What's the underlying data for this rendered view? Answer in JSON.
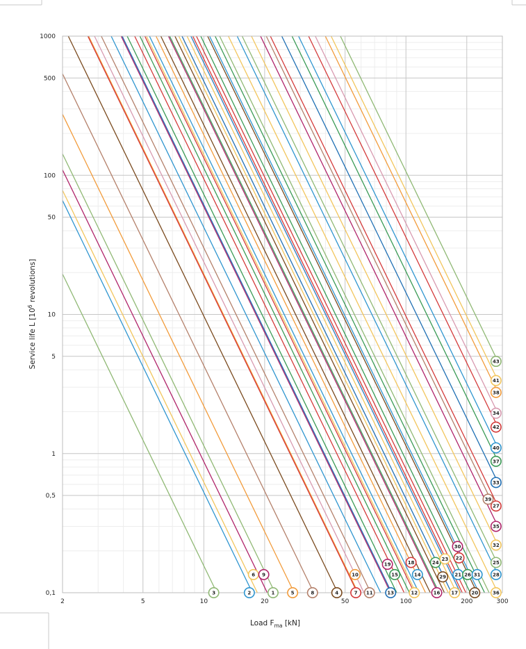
{
  "chart_data": {
    "type": "line",
    "xscale": "log",
    "yscale": "log",
    "xlim": [
      2,
      300
    ],
    "ylim": [
      0.1,
      1000
    ],
    "xlabel_main": "Load F",
    "xlabel_sub": "ma",
    "xlabel_unit": " [kN]",
    "ylabel_main": "Service life L [10",
    "ylabel_sup": "6",
    "ylabel_unit": " revolutions]",
    "x_ticks": [
      {
        "value": 2,
        "label": "2"
      },
      {
        "value": 5,
        "label": "5"
      },
      {
        "value": 10,
        "label": "10"
      },
      {
        "value": 20,
        "label": "20"
      },
      {
        "value": 50,
        "label": "50"
      },
      {
        "value": 100,
        "label": "100"
      },
      {
        "value": 200,
        "label": "200"
      },
      {
        "value": 300,
        "label": "300"
      }
    ],
    "y_ticks": [
      {
        "value": 0.1,
        "label": "0,1"
      },
      {
        "value": 0.5,
        "label": "0,5"
      },
      {
        "value": 1,
        "label": "1"
      },
      {
        "value": 5,
        "label": "5"
      },
      {
        "value": 10,
        "label": "10"
      },
      {
        "value": 50,
        "label": "50"
      },
      {
        "value": 100,
        "label": "100"
      },
      {
        "value": 500,
        "label": "500"
      },
      {
        "value": 1000,
        "label": "1000"
      }
    ],
    "grid": true,
    "series": [
      {
        "name": "3",
        "color": "#8fb874",
        "x0": 11.6,
        "y0": 0.1,
        "mx": 11.2,
        "my": 0.1
      },
      {
        "name": "2",
        "color": "#2e95cf",
        "x0": 17.4,
        "y0": 0.1,
        "mx": 16.8,
        "my": 0.1
      },
      {
        "name": "6",
        "color": "#f2c55c",
        "x0": 18.4,
        "y0": 0.1,
        "mx": 17.6,
        "my": 0.135
      },
      {
        "name": "9",
        "color": "#b0246a",
        "x0": 20.6,
        "y0": 0.1,
        "mx": 19.8,
        "my": 0.135
      },
      {
        "name": "1",
        "color": "#8fb874",
        "x0": 22.5,
        "y0": 0.1,
        "mx": 22.0,
        "my": 0.1
      },
      {
        "name": "5",
        "color": "#f29b3a",
        "x0": 28,
        "y0": 0.1,
        "mx": 27.5,
        "my": 0.1
      },
      {
        "name": "8",
        "color": "#b4806a",
        "x0": 35,
        "y0": 0.1,
        "mx": 34.5,
        "my": 0.1
      },
      {
        "name": "4",
        "color": "#7a4a1e",
        "x0": 46,
        "y0": 0.1,
        "mx": 45.5,
        "my": 0.1
      },
      {
        "name": "10",
        "color": "#f29b3a",
        "x0": 58,
        "y0": 0.1,
        "mx": 56,
        "my": 0.135
      },
      {
        "name": "7",
        "color": "#d43a3a",
        "x0": 57.5,
        "y0": 0.1,
        "mx": 56.5,
        "my": 0.1
      },
      {
        "name": "11",
        "color": "#b4806a",
        "x0": 67,
        "y0": 0.1,
        "mx": 66,
        "my": 0.1
      },
      {
        "name": "19",
        "color": "#b0246a",
        "x0": 84,
        "y0": 0.1,
        "mx": 81,
        "my": 0.16
      },
      {
        "name": "13",
        "color": "#1f6fb4",
        "x0": 85,
        "y0": 0.1,
        "mx": 84,
        "my": 0.1
      },
      {
        "name": "15",
        "color": "#3a9a55",
        "x0": 90,
        "y0": 0.1,
        "mx": 88,
        "my": 0.135
      },
      {
        "name": "18",
        "color": "#d43a3a",
        "x0": 110,
        "y0": 0.1,
        "mx": 106,
        "my": 0.165
      },
      {
        "name": "12",
        "color": "#f2c55c",
        "x0": 112,
        "y0": 0.1,
        "mx": 110,
        "my": 0.1
      },
      {
        "name": "14",
        "color": "#2e95cf",
        "x0": 116,
        "y0": 0.1,
        "mx": 114,
        "my": 0.135
      },
      {
        "name": "24",
        "color": "#3a9a55",
        "x0": 146,
        "y0": 0.1,
        "mx": 140,
        "my": 0.165
      },
      {
        "name": "16",
        "color": "#b0246a",
        "x0": 144,
        "y0": 0.1,
        "mx": 142,
        "my": 0.1
      },
      {
        "name": "23",
        "color": "#f2c55c",
        "x0": 162,
        "y0": 0.1,
        "mx": 156,
        "my": 0.175
      },
      {
        "name": "29",
        "color": "#7a4a1e",
        "x0": 155,
        "y0": 0.1,
        "mx": 152,
        "my": 0.13
      },
      {
        "name": "17",
        "color": "#f2c55c",
        "x0": 178,
        "y0": 0.1,
        "mx": 174,
        "my": 0.1
      },
      {
        "name": "30",
        "color": "#b0246a",
        "x0": 186,
        "y0": 0.1,
        "mx": 180,
        "my": 0.215
      },
      {
        "name": "22",
        "color": "#d43a3a",
        "x0": 190,
        "y0": 0.1,
        "mx": 183,
        "my": 0.178
      },
      {
        "name": "21",
        "color": "#2e95cf",
        "x0": 186,
        "y0": 0.1,
        "mx": 181,
        "my": 0.135
      },
      {
        "name": "26",
        "color": "#3a9a55",
        "x0": 208,
        "y0": 0.1,
        "mx": 202,
        "my": 0.135
      },
      {
        "name": "20",
        "color": "#7a4a1e",
        "x0": 225,
        "y0": 0.1,
        "mx": 219,
        "my": 0.1
      },
      {
        "name": "31",
        "color": "#2e95cf",
        "x0": 230,
        "y0": 0.1,
        "mx": 225,
        "my": 0.135
      },
      {
        "name": "36",
        "color": "#f2c55c",
        "x0": 285,
        "y0": 0.1,
        "mx": 279,
        "my": 0.1
      },
      {
        "name": "28",
        "color": "#2e95cf",
        "x0": 285,
        "y0": 0.135,
        "mx": 279,
        "my": 0.135
      },
      {
        "name": "25",
        "color": "#8fb874",
        "x0": 285,
        "y0": 0.16,
        "mx": 279,
        "my": 0.165
      },
      {
        "name": "32",
        "color": "#f2c55c",
        "x0": 285,
        "y0": 0.22,
        "mx": 279,
        "my": 0.22
      },
      {
        "name": "35",
        "color": "#b0246a",
        "x0": 285,
        "y0": 0.3,
        "mx": 279,
        "my": 0.3
      },
      {
        "name": "27",
        "color": "#d43a3a",
        "x0": 285,
        "y0": 0.42,
        "mx": 279,
        "my": 0.42
      },
      {
        "name": "39",
        "color": "#b4806a",
        "x0": 262,
        "y0": 0.47,
        "mx": 255,
        "my": 0.47
      },
      {
        "name": "33",
        "color": "#1f6fb4",
        "x0": 285,
        "y0": 0.62,
        "mx": 279,
        "my": 0.62
      },
      {
        "name": "37",
        "color": "#3a9a55",
        "x0": 285,
        "y0": 0.88,
        "mx": 279,
        "my": 0.88
      },
      {
        "name": "40",
        "color": "#2e95cf",
        "x0": 285,
        "y0": 1.1,
        "mx": 279,
        "my": 1.1
      },
      {
        "name": "42",
        "color": "#d43a3a",
        "x0": 285,
        "y0": 1.55,
        "mx": 279,
        "my": 1.55
      },
      {
        "name": "34",
        "color": "#d89ab0",
        "x0": 285,
        "y0": 1.95,
        "mx": 279,
        "my": 1.95
      },
      {
        "name": "38",
        "color": "#f29b3a",
        "x0": 285,
        "y0": 2.75,
        "mx": 279,
        "my": 2.75
      },
      {
        "name": "41",
        "color": "#f2c55c",
        "x0": 285,
        "y0": 3.35,
        "mx": 279,
        "my": 3.35
      },
      {
        "name": "43",
        "color": "#8fb874",
        "x0": 285,
        "y0": 4.6,
        "mx": 279,
        "my": 4.6
      }
    ],
    "extra_lines": [
      {
        "color": "#d89ab0",
        "x0": 62,
        "y0": 0.1
      },
      {
        "color": "#2e95cf",
        "x0": 75,
        "y0": 0.1
      },
      {
        "color": "#d43a3a",
        "x0": 98,
        "y0": 0.1
      },
      {
        "color": "#3a9a55",
        "x0": 104,
        "y0": 0.1
      },
      {
        "color": "#f29b3a",
        "x0": 125,
        "y0": 0.1
      },
      {
        "color": "#7a4a1e",
        "x0": 132,
        "y0": 0.1
      },
      {
        "color": "#1f6fb4",
        "x0": 168,
        "y0": 0.1
      },
      {
        "color": "#d43a3a",
        "x0": 198,
        "y0": 0.1
      },
      {
        "color": "#3a9a55",
        "x0": 245,
        "y0": 0.1
      },
      {
        "color": "#8fb874",
        "x0": 258,
        "y0": 0.1
      }
    ]
  }
}
